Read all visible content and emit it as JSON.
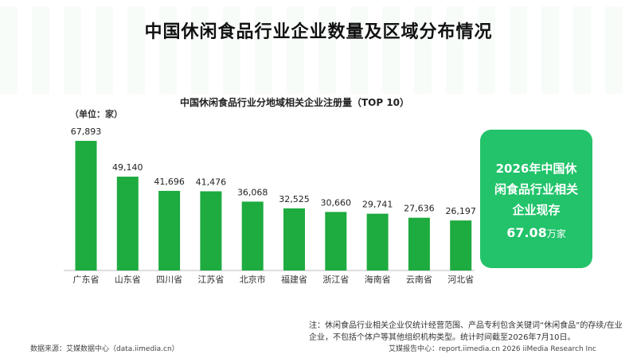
{
  "main_title": "中国休闲食品行业企业数量及区域分布情况",
  "colors": {
    "bar": "#1eab3f",
    "callout": "#22c36a",
    "axis": "#bdbdbd"
  },
  "chart_data": {
    "type": "bar",
    "title": "中国休闲食品行业分地域相关企业注册量（TOP 10）",
    "unit_label": "（单位：家）",
    "categories": [
      "广东省",
      "山东省",
      "四川省",
      "江苏省",
      "北京市",
      "福建省",
      "浙江省",
      "海南省",
      "云南省",
      "河北省"
    ],
    "values": [
      67893,
      49140,
      41696,
      41476,
      36068,
      32525,
      30660,
      29741,
      27636,
      26197
    ],
    "value_labels": [
      "67,893",
      "49,140",
      "41,696",
      "41,476",
      "36,068",
      "32,525",
      "30,660",
      "29,741",
      "27,636",
      "26,197"
    ],
    "ylim": [
      0,
      75000
    ],
    "grid": false
  },
  "callout": {
    "text": "2026年中国休闲食品行业相关企业现存",
    "value": "67.08",
    "unit": "万家"
  },
  "note": "注：休闲食品行业相关企业仅统计经营范围、产品专利包含关键词“休闲食品”的存续/在业企业，不包括个体户等其他组织机构类型。统计时间截至2026年7月10日。",
  "source_left": "数据来源：艾媒数据中心（data.iimedia.cn）",
  "source_right": "艾媒报告中心：report.iimedia.cn   2026 iiMedia Research Inc"
}
